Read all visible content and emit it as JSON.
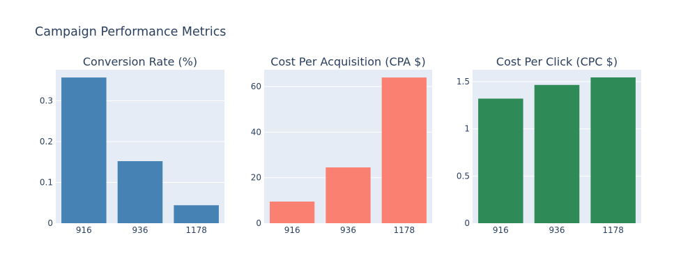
{
  "figure": {
    "title": "Campaign Performance Metrics"
  },
  "chart_data": [
    {
      "type": "bar",
      "title": "Conversion Rate (%)",
      "categories": [
        "916",
        "936",
        "1178"
      ],
      "values": [
        0.357,
        0.152,
        0.044
      ],
      "ylim": [
        0,
        0.376
      ],
      "yticks": [
        0,
        0.1,
        0.2,
        0.3
      ],
      "ytick_labels": [
        "0",
        "0.1",
        "0.2",
        "0.3"
      ],
      "color": "#4682b4",
      "xlabel": "",
      "ylabel": "",
      "grid": true
    },
    {
      "type": "bar",
      "title": "Cost Per Acquisition (CPA $)",
      "categories": [
        "916",
        "936",
        "1178"
      ],
      "values": [
        9.5,
        24.5,
        64.0
      ],
      "ylim": [
        0,
        67.4
      ],
      "yticks": [
        0,
        20,
        40,
        60
      ],
      "ytick_labels": [
        "0",
        "20",
        "40",
        "60"
      ],
      "color": "#fa8072",
      "xlabel": "",
      "ylabel": "",
      "grid": true
    },
    {
      "type": "bar",
      "title": "Cost Per Click (CPC $)",
      "categories": [
        "916",
        "936",
        "1178"
      ],
      "values": [
        1.32,
        1.465,
        1.545
      ],
      "ylim": [
        0,
        1.626
      ],
      "yticks": [
        0,
        0.5,
        1,
        1.5
      ],
      "ytick_labels": [
        "0",
        "0.5",
        "1",
        "1.5"
      ],
      "color": "#2e8b57",
      "xlabel": "",
      "ylabel": "",
      "grid": true
    }
  ]
}
